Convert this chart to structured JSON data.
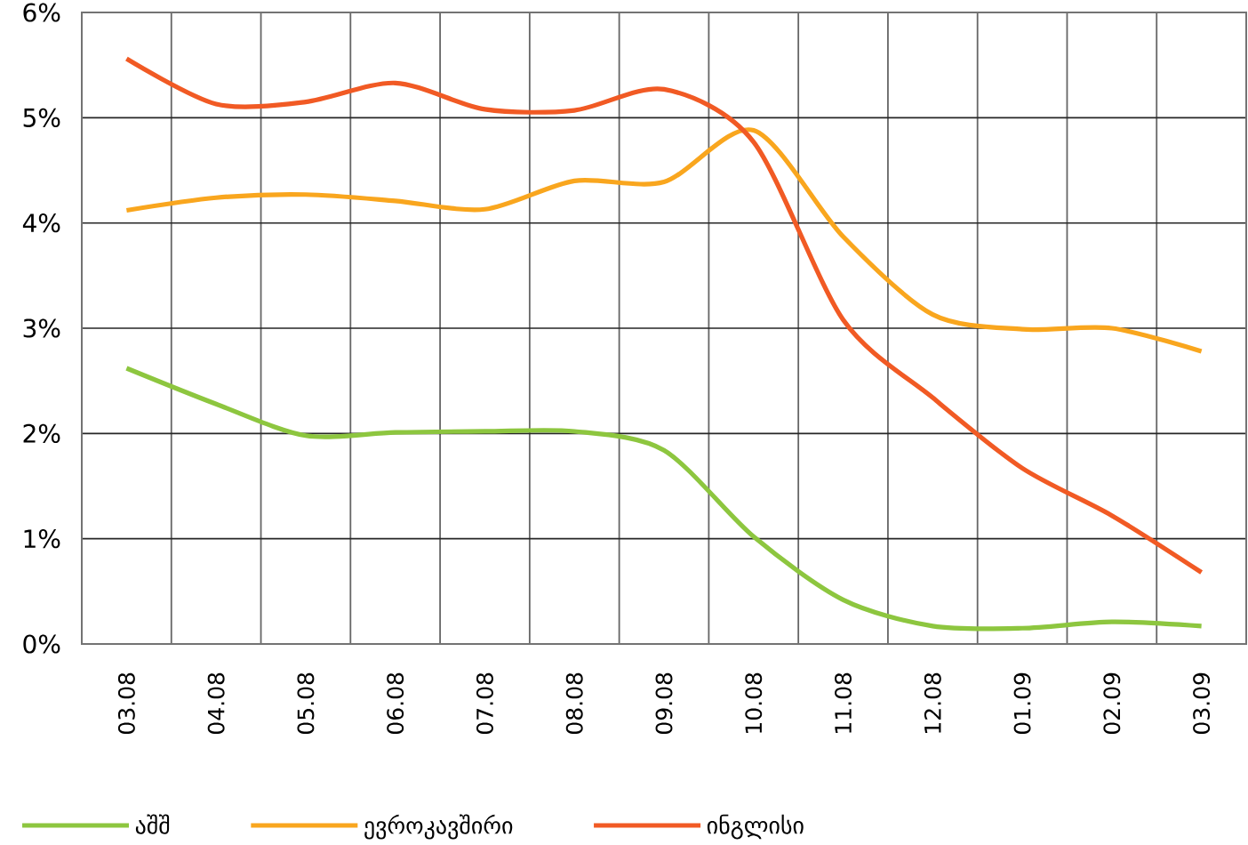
{
  "chart_data": {
    "type": "line",
    "categories": [
      "03.08",
      "04.08",
      "05.08",
      "06.08",
      "07.08",
      "08.08",
      "09.08",
      "10.08",
      "11.08",
      "12.08",
      "01.09",
      "02.09",
      "03.09"
    ],
    "series": [
      {
        "name": "აშშ",
        "color": "#8dc63f",
        "values": [
          2.62,
          2.28,
          1.98,
          2.01,
          2.02,
          2.02,
          1.84,
          1.02,
          0.42,
          0.17,
          0.15,
          0.21,
          0.17
        ]
      },
      {
        "name": "ევროკავშირი",
        "color": "#f9a61e",
        "values": [
          4.12,
          4.24,
          4.27,
          4.21,
          4.13,
          4.4,
          4.39,
          4.88,
          3.87,
          3.13,
          2.99,
          3.0,
          2.78
        ]
      },
      {
        "name": "ინგლისი",
        "color": "#f15a24",
        "values": [
          5.56,
          5.13,
          5.15,
          5.33,
          5.08,
          5.07,
          5.27,
          4.77,
          3.08,
          2.34,
          1.67,
          1.22,
          0.68
        ]
      }
    ],
    "ylim": [
      0,
      6
    ],
    "yticks": [
      {
        "value": 0,
        "label": "0%"
      },
      {
        "value": 1,
        "label": "1%"
      },
      {
        "value": 2,
        "label": "2%"
      },
      {
        "value": 3,
        "label": "3%"
      },
      {
        "value": 4,
        "label": "4%"
      },
      {
        "value": 5,
        "label": "5%"
      },
      {
        "value": 6,
        "label": "6%"
      }
    ],
    "grid": true,
    "legend": "bottom",
    "line_style": "solid"
  }
}
